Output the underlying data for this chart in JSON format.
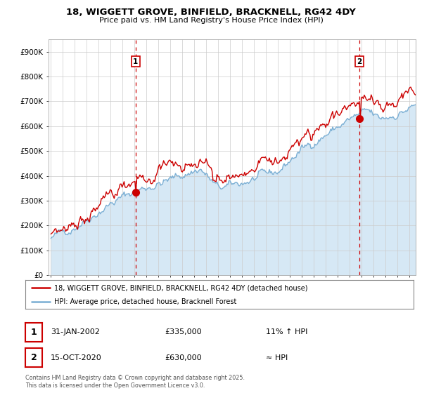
{
  "title": "18, WIGGETT GROVE, BINFIELD, BRACKNELL, RG42 4DY",
  "subtitle": "Price paid vs. HM Land Registry's House Price Index (HPI)",
  "legend_line1": "18, WIGGETT GROVE, BINFIELD, BRACKNELL, RG42 4DY (detached house)",
  "legend_line2": "HPI: Average price, detached house, Bracknell Forest",
  "annotation1_num": "1",
  "annotation1_date": "31-JAN-2002",
  "annotation1_price": "£335,000",
  "annotation1_hpi": "11% ↑ HPI",
  "annotation2_num": "2",
  "annotation2_date": "15-OCT-2020",
  "annotation2_price": "£630,000",
  "annotation2_hpi": "≈ HPI",
  "footer": "Contains HM Land Registry data © Crown copyright and database right 2025.\nThis data is licensed under the Open Government Licence v3.0.",
  "red_color": "#cc0000",
  "blue_color": "#7bafd4",
  "blue_fill": "#d6e8f5",
  "dashed_red": "#cc0000",
  "background_plot": "#ffffff",
  "background_fig": "#ffffff",
  "grid_color": "#cccccc",
  "ylim": [
    0,
    950000
  ],
  "yticks": [
    0,
    100000,
    200000,
    300000,
    400000,
    500000,
    600000,
    700000,
    800000,
    900000
  ],
  "ytick_labels": [
    "£0",
    "£100K",
    "£200K",
    "£300K",
    "£400K",
    "£500K",
    "£600K",
    "£700K",
    "£800K",
    "£900K"
  ],
  "sale1_x": 2002.08,
  "sale1_y": 335000,
  "sale2_x": 2020.79,
  "sale2_y": 630000,
  "xmin": 1994.8,
  "xmax": 2025.5
}
